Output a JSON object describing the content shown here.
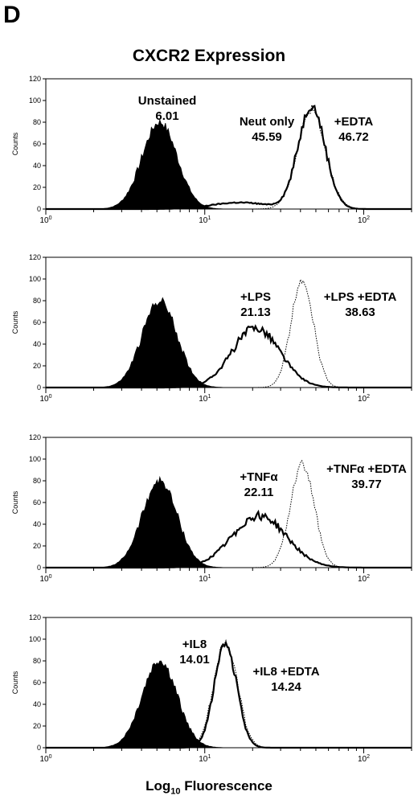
{
  "figure": {
    "panel_letter": "D",
    "title": "CXCR2 Expression",
    "xlabel_main": "Log",
    "xlabel_sub": "10",
    "xlabel_rest": " Fluorescence"
  },
  "chart_data": [
    {
      "type": "area",
      "ylabel": "Counts",
      "x_scale": "log",
      "xlim": [
        1,
        200
      ],
      "ylim": [
        0,
        120
      ],
      "x_ticks": [
        "10^0",
        "10^1",
        "10^2"
      ],
      "y_ticks": [
        0,
        20,
        40,
        60,
        80,
        100,
        120
      ],
      "series": [
        {
          "style": "filled",
          "peak_x": 5.2,
          "peak_y": 80,
          "width": 0.11
        },
        {
          "style": "thick",
          "peak_x": 47,
          "peak_y": 95,
          "width": 0.085,
          "tail": 6
        },
        {
          "style": "dotted",
          "peak_x": 47,
          "peak_y": 92,
          "width": 0.088
        }
      ],
      "annotations": [
        {
          "label": "Unstained",
          "value": "6.01"
        },
        {
          "label": "Neut only",
          "value": "45.59"
        },
        {
          "label": "+EDTA",
          "value": "46.72"
        }
      ]
    },
    {
      "type": "area",
      "ylabel": "Counts",
      "x_scale": "log",
      "xlim": [
        1,
        200
      ],
      "ylim": [
        0,
        120
      ],
      "x_ticks": [
        "10^0",
        "10^1",
        "10^2"
      ],
      "y_ticks": [
        0,
        20,
        40,
        60,
        80,
        100,
        120
      ],
      "series": [
        {
          "style": "filled",
          "peak_x": 5.2,
          "peak_y": 80,
          "width": 0.11
        },
        {
          "style": "thick",
          "peak_x": 21,
          "peak_y": 55,
          "width": 0.15
        },
        {
          "style": "dotted",
          "peak_x": 41,
          "peak_y": 100,
          "width": 0.07
        }
      ],
      "annotations": [
        {
          "label": "+LPS",
          "value": "21.13"
        },
        {
          "label": "+LPS +EDTA",
          "value": "38.63"
        }
      ]
    },
    {
      "type": "area",
      "ylabel": "Counts",
      "x_scale": "log",
      "xlim": [
        1,
        200
      ],
      "ylim": [
        0,
        120
      ],
      "x_ticks": [
        "10^0",
        "10^1",
        "10^2"
      ],
      "y_ticks": [
        0,
        20,
        40,
        60,
        80,
        100,
        120
      ],
      "series": [
        {
          "style": "filled",
          "peak_x": 5.2,
          "peak_y": 80,
          "width": 0.11
        },
        {
          "style": "thick",
          "peak_x": 22,
          "peak_y": 48,
          "width": 0.17
        },
        {
          "style": "dotted",
          "peak_x": 41,
          "peak_y": 95,
          "width": 0.075
        }
      ],
      "annotations": [
        {
          "label": "+TNFα",
          "value": "22.11"
        },
        {
          "label": "+TNFα +EDTA",
          "value": "39.77"
        }
      ]
    },
    {
      "type": "area",
      "ylabel": "Counts",
      "x_scale": "log",
      "xlim": [
        1,
        200
      ],
      "ylim": [
        0,
        120
      ],
      "x_ticks": [
        "10^0",
        "10^1",
        "10^2"
      ],
      "y_ticks": [
        0,
        20,
        40,
        60,
        80,
        100,
        120
      ],
      "series": [
        {
          "style": "filled",
          "peak_x": 5.2,
          "peak_y": 80,
          "width": 0.11
        },
        {
          "style": "thick",
          "peak_x": 13.5,
          "peak_y": 95,
          "width": 0.07
        },
        {
          "style": "dotted",
          "peak_x": 13.5,
          "peak_y": 97,
          "width": 0.075
        }
      ],
      "annotations": [
        {
          "label": "+IL8",
          "value": "14.01"
        },
        {
          "label": "+IL8 +EDTA",
          "value": "14.24"
        }
      ]
    }
  ]
}
